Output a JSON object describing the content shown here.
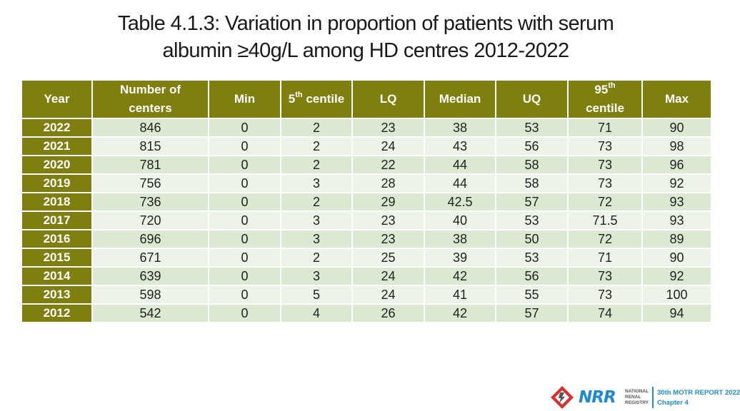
{
  "title": {
    "line1": "Table 4.1.3: Variation in proportion of patients with serum",
    "line2": "albumin ≥40g/L among HD centres 2012-2022"
  },
  "table": {
    "headers": {
      "year": "Year",
      "centers_line1": "Number of",
      "centers_line2": "centers",
      "min": "Min",
      "p5_num": "5",
      "p5_sup": "th",
      "p5_text": " centile",
      "lq": "LQ",
      "median": "Median",
      "uq": "UQ",
      "p95_num": "95",
      "p95_sup": "th",
      "p95_text": "centile",
      "max": "Max"
    },
    "rows": [
      {
        "year": "2022",
        "centers": "846",
        "min": "0",
        "p5": "2",
        "lq": "23",
        "median": "38",
        "uq": "53",
        "p95": "71",
        "max": "90"
      },
      {
        "year": "2021",
        "centers": "815",
        "min": "0",
        "p5": "2",
        "lq": "24",
        "median": "43",
        "uq": "56",
        "p95": "73",
        "max": "98"
      },
      {
        "year": "2020",
        "centers": "781",
        "min": "0",
        "p5": "2",
        "lq": "22",
        "median": "44",
        "uq": "58",
        "p95": "73",
        "max": "96"
      },
      {
        "year": "2019",
        "centers": "756",
        "min": "0",
        "p5": "3",
        "lq": "28",
        "median": "44",
        "uq": "58",
        "p95": "73",
        "max": "92"
      },
      {
        "year": "2018",
        "centers": "736",
        "min": "0",
        "p5": "2",
        "lq": "29",
        "median": "42.5",
        "uq": "57",
        "p95": "72",
        "max": "93"
      },
      {
        "year": "2017",
        "centers": "720",
        "min": "0",
        "p5": "3",
        "lq": "23",
        "median": "40",
        "uq": "53",
        "p95": "71.5",
        "max": "93"
      },
      {
        "year": "2016",
        "centers": "696",
        "min": "0",
        "p5": "3",
        "lq": "23",
        "median": "38",
        "uq": "50",
        "p95": "72",
        "max": "89"
      },
      {
        "year": "2015",
        "centers": "671",
        "min": "0",
        "p5": "2",
        "lq": "25",
        "median": "39",
        "uq": "53",
        "p95": "71",
        "max": "90"
      },
      {
        "year": "2014",
        "centers": "639",
        "min": "0",
        "p5": "3",
        "lq": "24",
        "median": "42",
        "uq": "56",
        "p95": "73",
        "max": "92"
      },
      {
        "year": "2013",
        "centers": "598",
        "min": "0",
        "p5": "5",
        "lq": "24",
        "median": "41",
        "uq": "55",
        "p95": "73",
        "max": "100"
      },
      {
        "year": "2012",
        "centers": "542",
        "min": "0",
        "p5": "4",
        "lq": "26",
        "median": "42",
        "uq": "57",
        "p95": "74",
        "max": "94"
      }
    ]
  },
  "footer": {
    "logo_text": "NRR",
    "logo_sub_line1": "NATIONAL",
    "logo_sub_line2": "RENAL",
    "logo_sub_line3": "REGISTRY",
    "report_line1": "30th MOTR REPORT 2022",
    "report_line2": "Chapter 4"
  },
  "colors": {
    "header_bg": "#7f7f0f",
    "row_odd": "#dce8d1",
    "row_even": "#eef3e9",
    "brand_blue": "#1d8ad1",
    "brand_red": "#d9302b"
  }
}
